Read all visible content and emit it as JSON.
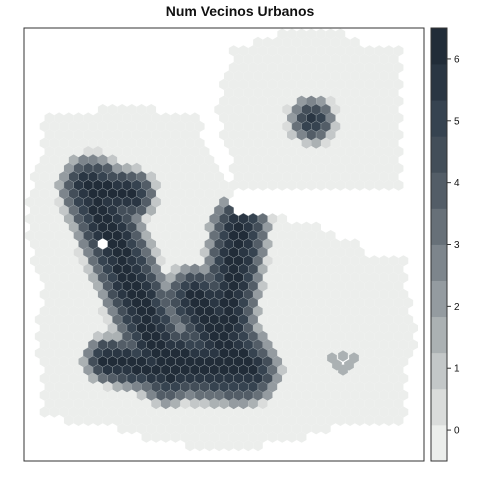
{
  "title": "Num Vecinos Urbanos",
  "colorbar": {
    "levels": [
      "#eceeec",
      "#dadcdb",
      "#c3c7c8",
      "#abb1b3",
      "#949ba0",
      "#7d858c",
      "#677078",
      "#535d67",
      "#434e59",
      "#364350",
      "#2a3643",
      "#212c38"
    ],
    "range": [
      -0.5,
      6.5
    ],
    "ticks": [
      {
        "value": 0,
        "label": "0"
      },
      {
        "value": 1,
        "label": "1"
      },
      {
        "value": 2,
        "label": "2"
      },
      {
        "value": 3,
        "label": "3"
      },
      {
        "value": 4,
        "label": "4"
      },
      {
        "value": 5,
        "label": "5"
      },
      {
        "value": 6,
        "label": "6"
      }
    ]
  },
  "colors": {
    "background": "#ffffff",
    "frame": "#333333",
    "hex_border": "#9aa3a8"
  }
}
